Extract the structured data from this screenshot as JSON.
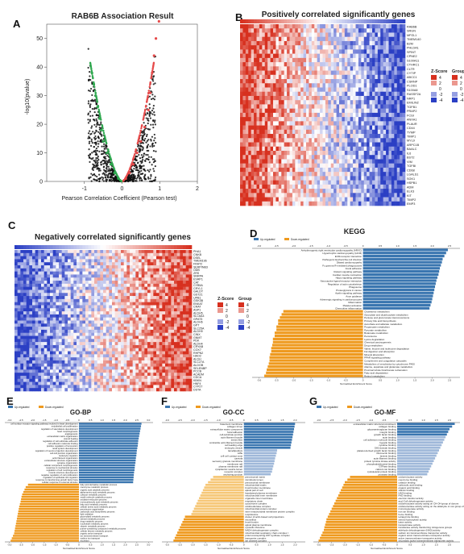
{
  "figure_letters": [
    "A",
    "B",
    "C",
    "D",
    "E",
    "F",
    "G"
  ],
  "colors": {
    "positive_blue": "#3a76b0",
    "light_blue": "#9fb8d9",
    "orange": "#ef9a1f",
    "light_orange": "#f6c777",
    "heat_red": "#d7301f",
    "heat_blue": "#2b3fc4",
    "volcano_red": "#e64a4a",
    "volcano_green": "#2fa84f"
  },
  "chart_data": [
    {
      "panel": "A",
      "type": "scatter",
      "title": "RAB6B Association Result",
      "xlabel": "Pearson Correlation Coefficient (Pearson test)",
      "ylabel": "-log10(pvalue)",
      "xlim": [
        -2,
        2
      ],
      "ylim": [
        0,
        55
      ],
      "xticks": [
        "-1",
        "0",
        "1",
        "2"
      ],
      "yticks": [
        "0",
        "10",
        "20",
        "30",
        "40",
        "50"
      ],
      "left_arm": [
        [
          -0.1,
          1
        ],
        [
          -0.2,
          3
        ],
        [
          -0.3,
          6
        ],
        [
          -0.4,
          10
        ],
        [
          -0.5,
          14
        ],
        [
          -0.55,
          18
        ],
        [
          -0.6,
          22
        ],
        [
          -0.65,
          26
        ],
        [
          -0.7,
          30
        ],
        [
          -0.75,
          34
        ],
        [
          -0.8,
          38
        ]
      ],
      "right_arm": [
        [
          0.1,
          1
        ],
        [
          0.2,
          3
        ],
        [
          0.3,
          6
        ],
        [
          0.4,
          10
        ],
        [
          0.5,
          14
        ],
        [
          0.6,
          19
        ],
        [
          0.7,
          25
        ],
        [
          0.75,
          31
        ],
        [
          0.8,
          38
        ],
        [
          0.85,
          44
        ],
        [
          0.9,
          50
        ],
        [
          0.98,
          56
        ]
      ]
    },
    {
      "panel": "B",
      "type": "heatmap",
      "title": "Positively correlated significantly genes",
      "legend_zscore_title": "Z-Score",
      "legend_group_title": "Group",
      "zscore_levels": [
        "4",
        "2",
        "0",
        "-2",
        "-4"
      ],
      "group_levels": [
        "4",
        "2",
        "0",
        "-2",
        "-4"
      ],
      "row_labels": [
        "RAB6B",
        "SRGN",
        "MPZL1",
        "TMEM140",
        "B2M",
        "PHLDA1",
        "SPINT",
        "CPNE2",
        "S100A11",
        "CTHRC1",
        "CLTR",
        "CYTIP",
        "ABCC1",
        "CSRNP",
        "PLOD1",
        "S100A8",
        "RASSF2A",
        "NRP1",
        "EMILIN2",
        "TGFB1",
        "PRAP2",
        "FCGI",
        "ANXA1",
        "PLAUR",
        "CD44",
        "TYMP",
        "TIMP1",
        "MYL9",
        "ARPC1B",
        "BAALC",
        "IL6",
        "BST2",
        "VIM",
        "TGFBI",
        "CD68",
        "LGALS1",
        "SGK1",
        "HSPB1",
        "ADM",
        "ELK3",
        "KIT",
        "TIMP2",
        "EMP3"
      ]
    },
    {
      "panel": "C",
      "type": "heatmap",
      "title": "Negatively correlated significantly genes",
      "legend_zscore_title": "Z-Score",
      "legend_group_title": "Group",
      "zscore_levels": [
        "4",
        "2",
        "0",
        "-2",
        "-4"
      ],
      "group_levels": [
        "4",
        "2",
        "0",
        "-2",
        "-4"
      ],
      "row_labels": [
        "PHA1",
        "CNKB",
        "DSEL",
        "TMEM196",
        "FRAT2",
        "SERPINB3",
        "ODB",
        "ZRS",
        "SNRPA",
        "ESRP1",
        "CAT",
        "CYB5A",
        "CRYL1",
        "GALDT",
        "GSTZ1",
        "UPB1",
        "GSK3B",
        "ENKAT",
        "CRAT",
        "ASP1",
        "ALDH5",
        "SLC6A3",
        "GPAT3",
        "ALDH6",
        "GPT",
        "SLC25A",
        "ALDH9",
        "CINX",
        "GNMT",
        "PDK",
        "ALDH4",
        "CRYAB",
        "COX7",
        "RHPN2",
        "HAO2",
        "ALDH",
        "SLC27A",
        "ALDOB",
        "SELENBP",
        "PCCB",
        "ACADM",
        "CDCA",
        "KBKN",
        "HNF4",
        "CYP27",
        "DSTA"
      ]
    },
    {
      "panel": "D",
      "type": "bar",
      "title": "KEGG",
      "legend": [
        "Up-regulated",
        "Down-regulated"
      ],
      "xlabel": "Normalized Enrichment Score",
      "xticks": [
        "-3.0",
        "-2.5",
        "-2.0",
        "-1.5",
        "-1.0",
        "-0.5",
        "0",
        "0.5",
        "1.0",
        "1.5",
        "2.0",
        "2.5"
      ],
      "xlim": [
        -3.2,
        2.8
      ],
      "categories": [
        "Arrhythmogenic right ventricular cardiomyopathy (ARVC)",
        "Hypertrophic cardiomyopathy (HCM)",
        "ECM-receptor interaction",
        "Pathogenic Escherichia coli infection",
        "Dilated cardiomyopathy",
        "Fc gamma R-mediated phagocytosis",
        "Focal adhesion",
        "Relaxin signaling pathway",
        "Cardiac muscle contraction",
        "Hippo signaling pathway",
        "Neuroactive ligand-receptor interaction",
        "Regulation of actin cytoskeleton",
        "Phagosome",
        "Proteoglycans in cancer",
        "Apelin signaling pathway",
        "Axon guidance",
        "Adrenergic signaling in cardiomyocytes",
        "Inflammation",
        "Platelet activation",
        "Chemokine inflammation",
        "Cholesterol metabolism",
        "Glyoxylate and dicarboxylate metabolism",
        "Pentose and glucuronate interconversions",
        "Primary bile acid biosynthesis",
        "Ascorbate and aldarate metabolism",
        "Propanoate metabolism",
        "Pyruvate metabolism",
        "Butanoate metabolism",
        "Peroxisome",
        "Lysine degradation",
        "Chemical carcinogenesis",
        "Drug metabolism",
        "Valine, leucine and isoleucine degradation",
        "Fat digestion and absorption",
        "Mineral absorption",
        "PPAR signaling pathway",
        "Complement and coagulation cascades",
        "Metabolism of xenobiotics by cytochrome P450",
        "Alanine, aspartate and glutamate metabolism",
        "Proximal tubule bicarbonate reclamation",
        "Fatty acid degradation",
        "Retinol metabolism"
      ],
      "values": [
        2.45,
        2.4,
        2.35,
        2.3,
        2.28,
        2.25,
        2.22,
        2.2,
        2.18,
        2.15,
        2.12,
        2.1,
        2.08,
        2.06,
        2.04,
        2.02,
        2.0,
        1.98,
        1.95,
        1.92,
        -2.3,
        -2.35,
        -2.4,
        -2.45,
        -2.45,
        -2.5,
        -2.5,
        -2.55,
        -2.55,
        -2.6,
        -2.6,
        -2.62,
        -2.65,
        -2.65,
        -2.68,
        -2.7,
        -2.7,
        -2.72,
        -2.75,
        -2.78,
        -2.8,
        -2.85
      ],
      "series_style": [
        "up",
        "up",
        "up",
        "up",
        "up",
        "up",
        "up",
        "up",
        "up",
        "up",
        "up",
        "up",
        "up",
        "up",
        "up",
        "up",
        "up",
        "up",
        "up",
        "up",
        "down",
        "down",
        "down",
        "down",
        "down",
        "down",
        "down",
        "down",
        "down",
        "down",
        "down",
        "down",
        "down",
        "down",
        "down",
        "down",
        "down",
        "down",
        "down",
        "down",
        "down",
        "down"
      ]
    },
    {
      "panel": "E",
      "type": "bar",
      "title": "GO-BP",
      "legend": [
        "Up-regulated",
        "Down-regulated"
      ],
      "xlabel": "Normalized Enrichment Score",
      "xticks": [
        "-3.0",
        "-2.5",
        "-2.0",
        "-1.5",
        "-1.0",
        "-0.5",
        "0",
        "0.5",
        "1.0",
        "1.5",
        "2.0",
        "2.5",
        "3.0"
      ],
      "xlim": [
        -3.2,
        3.2
      ],
      "categories": [
        "cell surface receptor signaling pathway involved in heart development",
        "endothelial cell proliferation",
        "regulation of vasculature development",
        "heart morphogenesis",
        "angiogenesis",
        "extracellular matrix organization",
        "wound healing",
        "regulation of cell-substrate adhesion",
        "cell adhesion molecule binding",
        "positive regulation of locomotion",
        "renal system development",
        "regulation of neuron projection development",
        "cell-cell junction organization",
        "leukocyte migration",
        "actin filament organization",
        "extracellular structure organization",
        "synapse organization",
        "cellular component morphogenesis",
        "response to mechanical stimulus",
        "regulation of cell morphogenesis",
        "muscle structure development",
        "negative regulation of cell proliferation",
        "regulation of epithelial cell migration",
        "response to transforming growth factor beta",
        "cellular response to external stimulus",
        "fatty acid derivative metabolic process",
        "coenzyme metabolic process",
        "organic acid catabolic process",
        "alpha-amino acid metabolic process",
        "cofactor metabolic process",
        "small molecule catabolic process",
        "oxidation-reduction process",
        "monocarboxylic acid metabolic process",
        "fatty acid metabolic process",
        "cellular amino acid metabolic process",
        "peroxisome organization",
        "carboxylic acid biosynthetic process",
        "lipid oxidation",
        "glycerolipid metabolic process",
        "steroid metabolic process",
        "drug metabolic process",
        "nucleotide metabolic process",
        "vitamin metabolic process",
        "purine-containing compound metabolic process",
        "cellular ketone metabolic process",
        "organic anion transport",
        "ion transmembrane transport",
        "sodium ion transport",
        "excretion"
      ],
      "values": [
        2.7,
        2.68,
        2.66,
        2.64,
        2.62,
        2.6,
        2.58,
        2.56,
        2.55,
        2.54,
        2.52,
        2.5,
        2.49,
        2.48,
        2.46,
        2.45,
        2.44,
        2.42,
        2.41,
        2.4,
        2.38,
        2.37,
        2.36,
        2.35,
        2.34,
        -2.2,
        -2.3,
        -2.35,
        -2.4,
        -2.45,
        -2.48,
        -2.5,
        -2.52,
        -2.55,
        -2.58,
        -2.6,
        -2.62,
        -2.64,
        -2.66,
        -2.68,
        -2.7,
        -2.72,
        -2.74,
        -2.76,
        -2.78,
        -2.8,
        -2.85,
        -2.9,
        -2.95
      ],
      "series_style": [
        "up",
        "up",
        "up",
        "up",
        "up",
        "up",
        "up",
        "up",
        "up",
        "up",
        "up",
        "up",
        "up",
        "up",
        "up",
        "up",
        "up",
        "up",
        "up",
        "up",
        "up",
        "up",
        "up",
        "up",
        "up",
        "down",
        "down",
        "down",
        "down",
        "down",
        "down",
        "down",
        "down",
        "down",
        "down",
        "down",
        "down",
        "down",
        "down",
        "down",
        "down",
        "down",
        "down",
        "down",
        "down",
        "down",
        "down",
        "down",
        "down"
      ]
    },
    {
      "panel": "F",
      "type": "bar",
      "title": "GO-CC",
      "legend": [
        "Up-regulated",
        "Down-regulated"
      ],
      "xlabel": "Normalized Enrichment Score",
      "xticks": [
        "-3.0",
        "-2.5",
        "-2.0",
        "-1.5",
        "-1.0",
        "-0.5",
        "0",
        "0.5",
        "1.0",
        "1.5",
        "2.0"
      ],
      "xlim": [
        -3.2,
        2.4
      ],
      "categories": [
        "basement membrane",
        "collagen trimer",
        "extracellular matrix component",
        "focal adhesion",
        "cell-substrate junction",
        "actin filament bundle",
        "stress fiber",
        "contractile actin filament bundle",
        "cell leading edge",
        "endocytic vesicle",
        "lamellipodium",
        "ruffle",
        "cell-cell contact zone",
        "caveola",
        "secretory granule membrane",
        "membrane raft",
        "plasma membrane raft",
        "cytoplasmic vesicle lumen",
        "receptor complex",
        "anchoring junction",
        "peroxisomal matrix",
        "microbody lumen",
        "peroxisomal membrane",
        "mitochondrial matrix",
        "brush border membrane",
        "apical part of cell",
        "basolateral plasma membrane",
        "mitochondrial inner membrane",
        "organelle inner membrane",
        "respiratory chain",
        "cytochrome complex",
        "oxidoreductase complex",
        "mitochondrial protein complex",
        "inner mitochondrial membrane protein complex",
        "respirasome",
        "cluster of actin-based cell projections",
        "microvillus",
        "brush border",
        "apical plasma membrane",
        "cytosolic ribosome",
        "NADH dehydrogenase complex",
        "mitochondrial respiratory chain complex I",
        "proton-transporting ATP synthase complex",
        "transporter complex",
        "ion channel complex"
      ],
      "values": [
        2.0,
        1.98,
        1.96,
        1.94,
        1.92,
        1.9,
        1.88,
        1.86,
        1.84,
        1.82,
        1.3,
        1.28,
        1.25,
        1.22,
        1.2,
        1.18,
        1.15,
        1.12,
        1.1,
        1.05,
        -1.2,
        -1.3,
        -1.4,
        -1.5,
        -1.55,
        -1.6,
        -1.65,
        -1.7,
        -1.75,
        -1.8,
        -1.85,
        -1.9,
        -1.95,
        -2.0,
        -2.05,
        -2.3,
        -2.35,
        -2.4,
        -2.45,
        -2.5,
        -2.55,
        -2.6,
        -2.65,
        -2.7,
        -2.75
      ],
      "series_style": [
        "up",
        "up",
        "up",
        "up",
        "up",
        "up",
        "up",
        "up",
        "up",
        "up",
        "up-light",
        "up-light",
        "up-light",
        "up-light",
        "up-light",
        "up-light",
        "up-light",
        "up-light",
        "up-light",
        "up-light",
        "down-light",
        "down-light",
        "down-light",
        "down-light",
        "down-light",
        "down-light",
        "down-light",
        "down-light",
        "down-light",
        "down-light",
        "down-light",
        "down-light",
        "down-light",
        "down-light",
        "down-light",
        "down",
        "down",
        "down",
        "down",
        "down",
        "down",
        "down",
        "down",
        "down",
        "down"
      ]
    },
    {
      "panel": "G",
      "type": "bar",
      "title": "GO-MF",
      "legend": [
        "Up-regulated",
        "Down-regulated"
      ],
      "xlabel": "Normalized Enrichment Score",
      "xticks": [
        "-3.0",
        "-2.5",
        "-2.0",
        "-1.5",
        "-1.0",
        "-0.5",
        "0",
        "0.5",
        "1.0",
        "1.5",
        "2.0"
      ],
      "xlim": [
        -3.2,
        2.4
      ],
      "categories": [
        "extracellular matrix structural constituent",
        "collagen binding",
        "glycosaminoglycan binding",
        "integrin binding",
        "growth factor binding",
        "actin binding",
        "cell adhesion molecule binding",
        "heparin binding",
        "cytokine binding",
        "SH3 domain binding",
        "platelet-derived growth factor binding",
        "fibronectin binding",
        "laminin binding",
        "actin filament binding",
        "protein tyrosine kinase activity",
        "phosphatidylinositol binding",
        "GTPase binding",
        "calcium ion binding",
        "cytoskeletal protein binding",
        "protease binding",
        "oxidoreductase activity",
        "coenzyme binding",
        "cofactor binding",
        "carboxylic acid binding",
        "organic acid binding",
        "vitamin binding",
        "NAD binding",
        "FAD binding",
        "electron transfer activity",
        "acyl-CoA dehydrogenase activity",
        "oxidoreductase activity acting on CH-OH group of donors",
        "oxidoreductase activity acting on the aldehyde or oxo group of donors",
        "monooxygenase activity",
        "iron ion binding",
        "heme binding",
        "tetrapyrrole binding",
        "steroid hydroxylase activity",
        "lyase activity",
        "transaminase activity",
        "transferase activity transferring nitrogenous groups",
        "aldehyde dehydrogenase (NAD) activity",
        "sodium ion transmembrane transporter activity",
        "organic anion transmembrane transporter activity",
        "active transmembrane transporter activity",
        "secondary active transmembrane transporter activity"
      ],
      "values": [
        2.2,
        2.1,
        2.0,
        1.95,
        1.9,
        1.85,
        1.8,
        1.75,
        1.7,
        1.65,
        1.6,
        1.55,
        1.5,
        1.45,
        1.4,
        1.35,
        1.3,
        1.25,
        1.2,
        1.15,
        -1.8,
        -1.9,
        -2.0,
        -2.05,
        -2.1,
        -2.15,
        -2.2,
        -2.25,
        -2.3,
        -2.35,
        -2.4,
        -2.45,
        -2.5,
        -2.55,
        -2.6,
        -2.65,
        -2.7,
        -2.72,
        -2.75,
        -2.78,
        -2.8,
        -2.85,
        -2.9,
        -2.95,
        -3.0
      ],
      "series_style": [
        "up",
        "up",
        "up",
        "up",
        "up",
        "up-light",
        "up-light",
        "up-light",
        "up-light",
        "up-light",
        "up-light",
        "up-light",
        "up-light",
        "up-light",
        "up-light",
        "up-light",
        "up-light",
        "up-light",
        "up-light",
        "up-light",
        "down",
        "down",
        "down",
        "down",
        "down",
        "down",
        "down",
        "down",
        "down",
        "down",
        "down",
        "down",
        "down",
        "down",
        "down",
        "down",
        "down",
        "down",
        "down",
        "down",
        "down",
        "down",
        "down",
        "down",
        "down"
      ]
    }
  ]
}
